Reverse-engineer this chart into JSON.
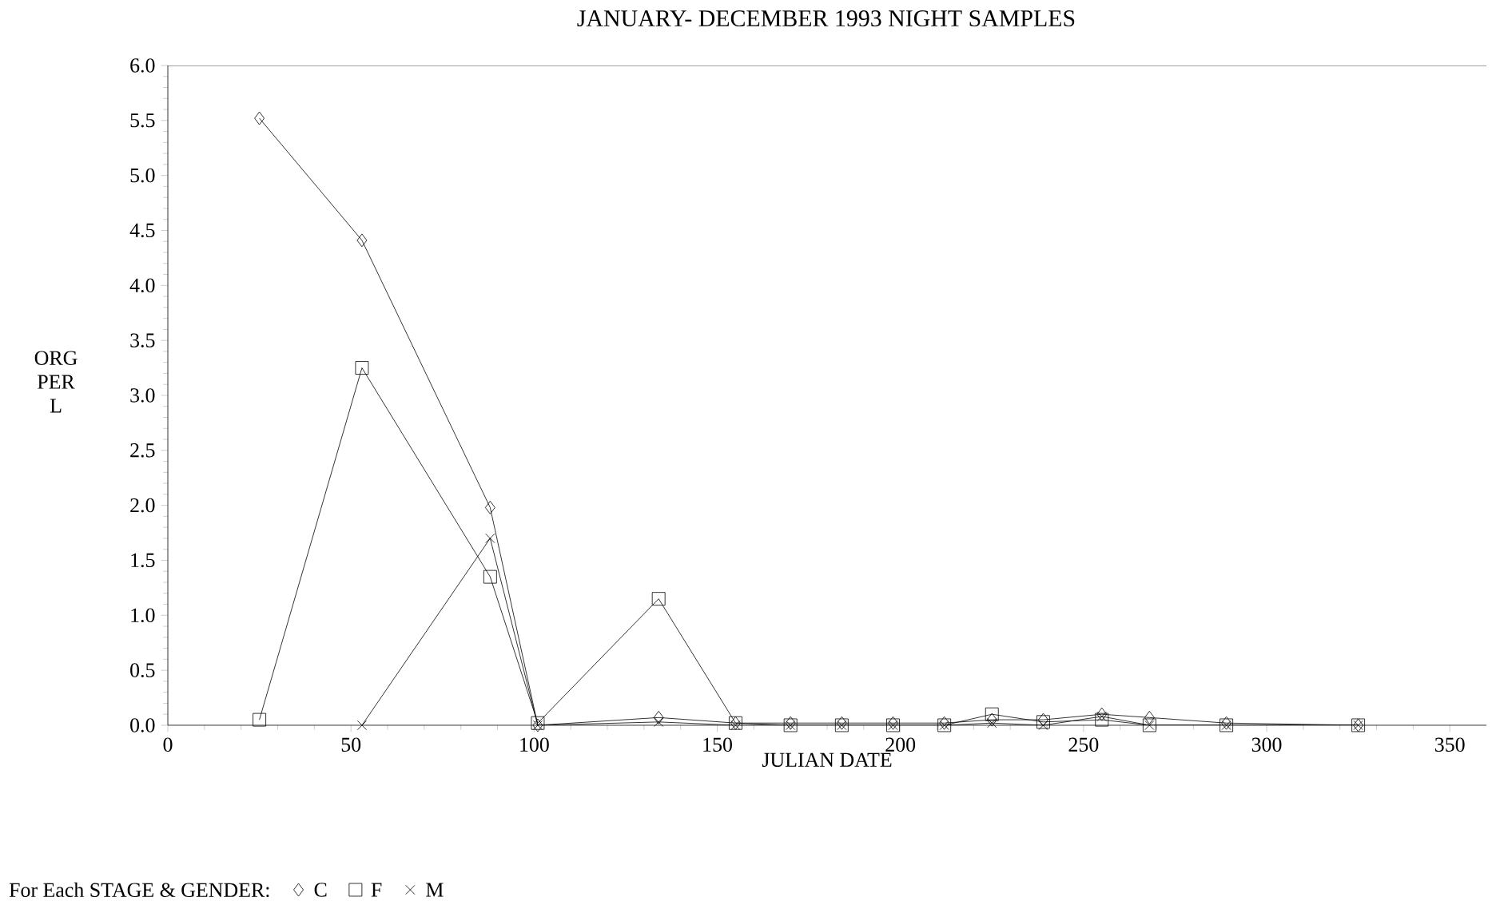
{
  "chart_data": {
    "type": "line",
    "title": "JANUARY- DECEMBER 1993 NIGHT SAMPLES",
    "xlabel": "JULIAN DATE",
    "ylabel": "ORG PER L",
    "legend_title": "For Each STAGE & GENDER:",
    "legend": "bottom",
    "xlim": [
      0,
      360
    ],
    "xticks": [
      0,
      50,
      100,
      150,
      200,
      250,
      300,
      350
    ],
    "ylim": [
      0,
      6
    ],
    "yticks": [
      {
        "value": 0,
        "label": "0.0"
      },
      {
        "value": 0.5,
        "label": "0.5"
      },
      {
        "value": 1,
        "label": "1.0"
      },
      {
        "value": 1.5,
        "label": "1.5"
      },
      {
        "value": 2,
        "label": "2.0"
      },
      {
        "value": 2.5,
        "label": "2.5"
      },
      {
        "value": 3,
        "label": "3.0"
      },
      {
        "value": 3.5,
        "label": "3.5"
      },
      {
        "value": 4,
        "label": "4.0"
      },
      {
        "value": 4.5,
        "label": "4.5"
      },
      {
        "value": 5,
        "label": "5.0"
      },
      {
        "value": 5.5,
        "label": "5.5"
      },
      {
        "value": 6,
        "label": "6.0"
      }
    ],
    "series": [
      {
        "name": "C",
        "color": "#000000",
        "marker": "diamond",
        "x": [
          25,
          53,
          88,
          101,
          134,
          155,
          170,
          184,
          198,
          212,
          225,
          239,
          255,
          268,
          289,
          325
        ],
        "values": [
          5.52,
          4.41,
          1.98,
          0.0,
          0.07,
          0.02,
          0.02,
          0.02,
          0.02,
          0.02,
          0.05,
          0.05,
          0.1,
          0.07,
          0.02,
          0.0
        ]
      },
      {
        "name": "F",
        "color": "#000000",
        "marker": "square",
        "x": [
          25,
          53,
          88,
          101,
          134,
          155,
          170,
          184,
          198,
          212,
          225,
          239,
          255,
          268,
          289,
          325
        ],
        "values": [
          0.05,
          3.25,
          1.35,
          0.02,
          1.15,
          0.02,
          0.0,
          0.0,
          0.0,
          0.0,
          0.1,
          0.03,
          0.05,
          0.0,
          0.0,
          0.0
        ]
      },
      {
        "name": "M",
        "color": "#000000",
        "marker": "cross",
        "x": [
          53,
          88,
          101,
          134,
          155,
          170,
          184,
          198,
          212,
          225,
          239,
          255,
          268,
          289,
          325
        ],
        "values": [
          0.0,
          1.7,
          0.0,
          0.03,
          0.0,
          0.0,
          0.0,
          0.0,
          0.0,
          0.02,
          0.0,
          0.08,
          0.0,
          0.0,
          0.0
        ]
      }
    ]
  }
}
